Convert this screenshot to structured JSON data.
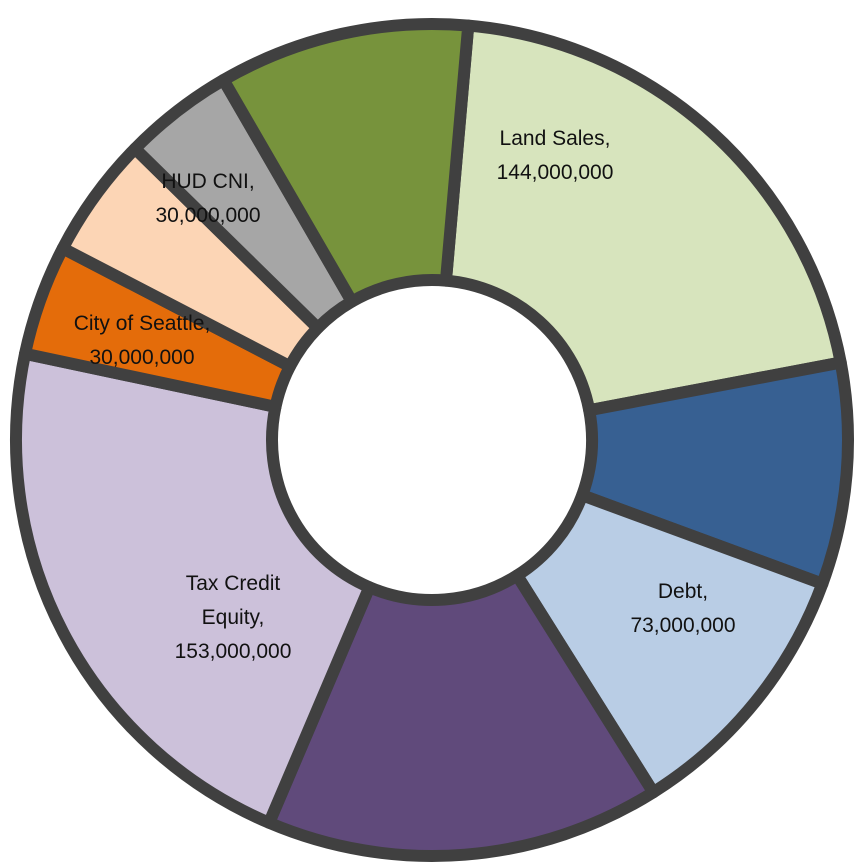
{
  "chart_data": {
    "type": "donut",
    "categories": [
      "Land Sales,",
      null,
      "Debt,",
      null,
      "Tax Credit Equity,",
      "City of Seattle,",
      null,
      "HUD CNI,",
      null
    ],
    "values": [
      144000000,
      60000000,
      73000000,
      107000000,
      153000000,
      30000000,
      33000000,
      30000000,
      68000000
    ],
    "value_labels": [
      "144,000,000",
      null,
      "73,000,000",
      null,
      "153,000,000",
      "30,000,000",
      null,
      "30,000,000",
      null
    ],
    "colors": [
      "#d7e4bd",
      "#376092",
      "#b9cde5",
      "#604a7b",
      "#ccc1da",
      "#e46c0a",
      "#fcd5b5",
      "#a6a6a6",
      "#77933c"
    ]
  }
}
